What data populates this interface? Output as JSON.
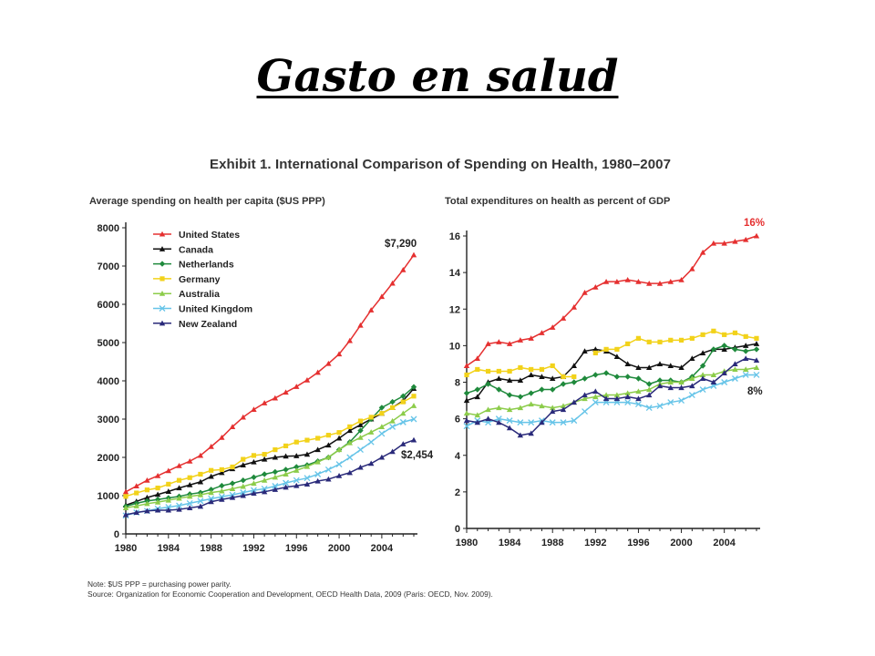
{
  "slide": {
    "title": "Gasto en salud"
  },
  "exhibit": {
    "title": "Exhibit 1. International Comparison of Spending on Health, 1980–2007",
    "note": "Note: $US PPP = purchasing power parity.",
    "source": "Source: Organization for Economic Cooperation and Development, OECD Health Data, 2009 (Paris: OECD, Nov. 2009)."
  },
  "colors": {
    "United States": "#e53030",
    "Canada": "#111111",
    "Netherlands": "#1f8a3c",
    "Germany": "#f2d21a",
    "Australia": "#8ccc4a",
    "United Kingdom": "#66c4e8",
    "New Zealand": "#2a2a7a"
  },
  "chart_data": [
    {
      "type": "line",
      "title": "Average spending on health per capita ($US PPP)",
      "ylim": [
        0,
        8000
      ],
      "yticks": [
        0,
        1000,
        2000,
        3000,
        4000,
        5000,
        6000,
        7000,
        8000
      ],
      "xlim": [
        1980,
        2007
      ],
      "xticks": [
        1980,
        1984,
        1988,
        1992,
        1996,
        2000,
        2004
      ],
      "legend_position": "top-left",
      "grid": false,
      "annotations": [
        {
          "text": "$7,290",
          "series": "United States"
        },
        {
          "text": "$2,454",
          "series": "New Zealand"
        }
      ],
      "x": [
        1980,
        1981,
        1982,
        1983,
        1984,
        1985,
        1986,
        1987,
        1988,
        1989,
        1990,
        1991,
        1992,
        1993,
        1994,
        1995,
        1996,
        1997,
        1998,
        1999,
        2000,
        2001,
        2002,
        2003,
        2004,
        2005,
        2006,
        2007
      ],
      "series": [
        {
          "name": "United States",
          "marker": "triangle",
          "values": [
            1100,
            1250,
            1400,
            1520,
            1650,
            1780,
            1900,
            2050,
            2280,
            2520,
            2800,
            3050,
            3250,
            3420,
            3550,
            3700,
            3850,
            4020,
            4220,
            4450,
            4700,
            5050,
            5450,
            5850,
            6200,
            6550,
            6900,
            7290
          ]
        },
        {
          "name": "Canada",
          "marker": "triangle",
          "values": [
            750,
            850,
            950,
            1030,
            1110,
            1200,
            1280,
            1360,
            1500,
            1600,
            1700,
            1800,
            1880,
            1950,
            2000,
            2030,
            2040,
            2080,
            2200,
            2320,
            2500,
            2700,
            2850,
            3000,
            3150,
            3300,
            3480,
            3800
          ]
        },
        {
          "name": "Netherlands",
          "marker": "diamond",
          "values": [
            720,
            800,
            860,
            900,
            940,
            980,
            1040,
            1080,
            1160,
            1260,
            1320,
            1400,
            1480,
            1560,
            1620,
            1680,
            1750,
            1800,
            1900,
            2000,
            2200,
            2400,
            2700,
            3000,
            3300,
            3450,
            3600,
            3840
          ]
        },
        {
          "name": "Germany",
          "marker": "square",
          "values": [
            980,
            1070,
            1150,
            1200,
            1300,
            1400,
            1470,
            1560,
            1660,
            1680,
            1750,
            1950,
            2050,
            2080,
            2200,
            2300,
            2400,
            2450,
            2500,
            2580,
            2650,
            2800,
            2950,
            3050,
            3150,
            3300,
            3450,
            3600
          ]
        },
        {
          "name": "Australia",
          "marker": "triangle",
          "values": [
            680,
            730,
            790,
            830,
            880,
            930,
            980,
            1020,
            1080,
            1120,
            1180,
            1240,
            1320,
            1400,
            1480,
            1560,
            1660,
            1760,
            1880,
            2000,
            2200,
            2380,
            2520,
            2660,
            2800,
            2950,
            3150,
            3350
          ]
        },
        {
          "name": "United Kingdom",
          "marker": "x",
          "values": [
            480,
            560,
            600,
            660,
            700,
            740,
            800,
            860,
            920,
            970,
            1020,
            1080,
            1140,
            1180,
            1250,
            1330,
            1400,
            1460,
            1560,
            1680,
            1820,
            2000,
            2200,
            2400,
            2620,
            2800,
            2920,
            3000
          ]
        },
        {
          "name": "New Zealand",
          "marker": "triangle",
          "values": [
            500,
            560,
            600,
            620,
            620,
            640,
            680,
            720,
            840,
            900,
            950,
            1000,
            1060,
            1100,
            1160,
            1220,
            1260,
            1300,
            1380,
            1430,
            1520,
            1600,
            1740,
            1840,
            2000,
            2150,
            2350,
            2454
          ]
        }
      ]
    },
    {
      "type": "line",
      "title": "Total expenditures on health as percent of GDP",
      "ylim": [
        0,
        16
      ],
      "yticks": [
        0,
        2,
        4,
        6,
        8,
        10,
        12,
        14,
        16
      ],
      "xlim": [
        1980,
        2007
      ],
      "xticks": [
        1980,
        1984,
        1988,
        1992,
        1996,
        2000,
        2004
      ],
      "grid": false,
      "annotations": [
        {
          "text": "16%",
          "series": "United States"
        },
        {
          "text": "8%",
          "series": "United Kingdom"
        }
      ],
      "x": [
        1980,
        1981,
        1982,
        1983,
        1984,
        1985,
        1986,
        1987,
        1988,
        1989,
        1990,
        1991,
        1992,
        1993,
        1994,
        1995,
        1996,
        1997,
        1998,
        1999,
        2000,
        2001,
        2002,
        2003,
        2004,
        2005,
        2006,
        2007
      ],
      "series": [
        {
          "name": "United States",
          "marker": "triangle",
          "values": [
            8.9,
            9.3,
            10.1,
            10.2,
            10.1,
            10.3,
            10.4,
            10.7,
            11.0,
            11.5,
            12.1,
            12.9,
            13.2,
            13.5,
            13.5,
            13.6,
            13.5,
            13.4,
            13.4,
            13.5,
            13.6,
            14.2,
            15.1,
            15.6,
            15.6,
            15.7,
            15.8,
            16.0
          ]
        },
        {
          "name": "Canada",
          "marker": "triangle",
          "values": [
            7.0,
            7.2,
            8.0,
            8.2,
            8.1,
            8.1,
            8.4,
            8.3,
            8.2,
            8.3,
            8.9,
            9.7,
            9.8,
            9.7,
            9.4,
            9.0,
            8.8,
            8.8,
            9.0,
            8.9,
            8.8,
            9.3,
            9.6,
            9.8,
            9.8,
            9.9,
            10.0,
            10.1
          ]
        },
        {
          "name": "Netherlands",
          "marker": "diamond",
          "values": [
            7.4,
            7.6,
            7.9,
            7.6,
            7.3,
            7.2,
            7.4,
            7.6,
            7.6,
            7.9,
            8.0,
            8.2,
            8.4,
            8.5,
            8.3,
            8.3,
            8.2,
            7.9,
            8.1,
            8.1,
            8.0,
            8.3,
            8.9,
            9.8,
            10.0,
            9.8,
            9.7,
            9.8
          ]
        },
        {
          "name": "Germany",
          "marker": "square",
          "values": [
            8.4,
            8.7,
            8.6,
            8.6,
            8.6,
            8.8,
            8.7,
            8.7,
            8.9,
            8.3,
            8.3,
            null,
            9.6,
            9.8,
            9.8,
            10.1,
            10.4,
            10.2,
            10.2,
            10.3,
            10.3,
            10.4,
            10.6,
            10.8,
            10.6,
            10.7,
            10.5,
            10.4
          ]
        },
        {
          "name": "Australia",
          "marker": "triangle",
          "values": [
            6.3,
            6.2,
            6.5,
            6.6,
            6.5,
            6.6,
            6.8,
            6.7,
            6.6,
            6.7,
            6.9,
            7.1,
            7.2,
            7.3,
            7.3,
            7.4,
            7.5,
            7.6,
            7.9,
            8.0,
            8.0,
            8.2,
            8.4,
            8.4,
            8.6,
            8.7,
            8.7,
            8.8
          ]
        },
        {
          "name": "United Kingdom",
          "marker": "x",
          "values": [
            5.6,
            5.9,
            5.8,
            6.0,
            5.9,
            5.8,
            5.8,
            5.9,
            5.8,
            5.8,
            5.9,
            6.4,
            6.9,
            6.9,
            6.9,
            6.9,
            6.8,
            6.6,
            6.7,
            6.9,
            7.0,
            7.3,
            7.6,
            7.8,
            8.0,
            8.2,
            8.4,
            8.4
          ]
        },
        {
          "name": "New Zealand",
          "marker": "triangle",
          "values": [
            5.9,
            5.8,
            6.0,
            5.8,
            5.5,
            5.1,
            5.2,
            5.8,
            6.4,
            6.5,
            6.9,
            7.3,
            7.5,
            7.1,
            7.1,
            7.2,
            7.1,
            7.3,
            7.8,
            7.7,
            7.7,
            7.8,
            8.2,
            8.0,
            8.5,
            9.0,
            9.3,
            9.2
          ]
        }
      ]
    }
  ]
}
